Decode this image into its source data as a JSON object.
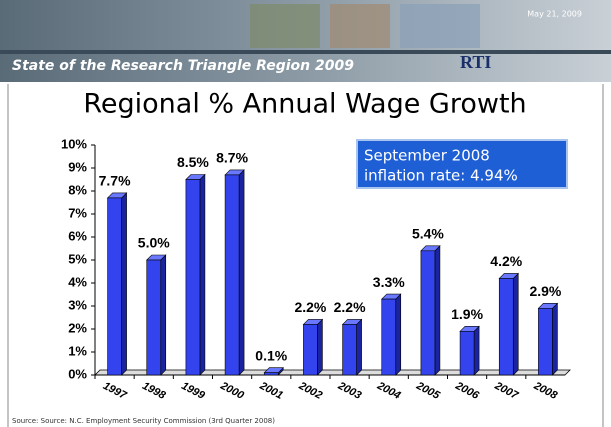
{
  "header": {
    "title": "State of the Research Triangle Region 2009",
    "date": "May 21, 2009",
    "logo": "RTI"
  },
  "chart_data": {
    "type": "bar",
    "title": "Regional % Annual Wage Growth",
    "annotation": [
      "September 2008",
      "inflation rate:  4.94%"
    ],
    "categories": [
      "1997",
      "1998",
      "1999",
      "2000",
      "2001",
      "2002",
      "2003",
      "2004",
      "2005",
      "2006",
      "2007",
      "2008"
    ],
    "values": [
      7.7,
      5.0,
      8.5,
      8.7,
      0.1,
      2.2,
      2.2,
      3.3,
      5.4,
      1.9,
      4.2,
      2.9
    ],
    "value_labels": [
      "7.7%",
      "5.0%",
      "8.5%",
      "8.7%",
      "0.1%",
      "2.2%",
      "2.2%",
      "3.3%",
      "5.4%",
      "1.9%",
      "4.2%",
      "2.9%"
    ],
    "color": "#3344ee",
    "ylim": [
      0,
      10
    ],
    "yticks": [
      {
        "value": 0,
        "label": "0%"
      },
      {
        "value": 1,
        "label": "1%"
      },
      {
        "value": 2,
        "label": "2%"
      },
      {
        "value": 3,
        "label": "3%"
      },
      {
        "value": 4,
        "label": "4%"
      },
      {
        "value": 5,
        "label": "5%"
      },
      {
        "value": 6,
        "label": "6%"
      },
      {
        "value": 7,
        "label": "7%"
      },
      {
        "value": 8,
        "label": "8%"
      },
      {
        "value": 9,
        "label": "9%"
      },
      {
        "value": 10,
        "label": "10%"
      }
    ],
    "grid": false
  },
  "source": "Source: Source: N.C. Employment Security Commission (3rd Quarter 2008)"
}
